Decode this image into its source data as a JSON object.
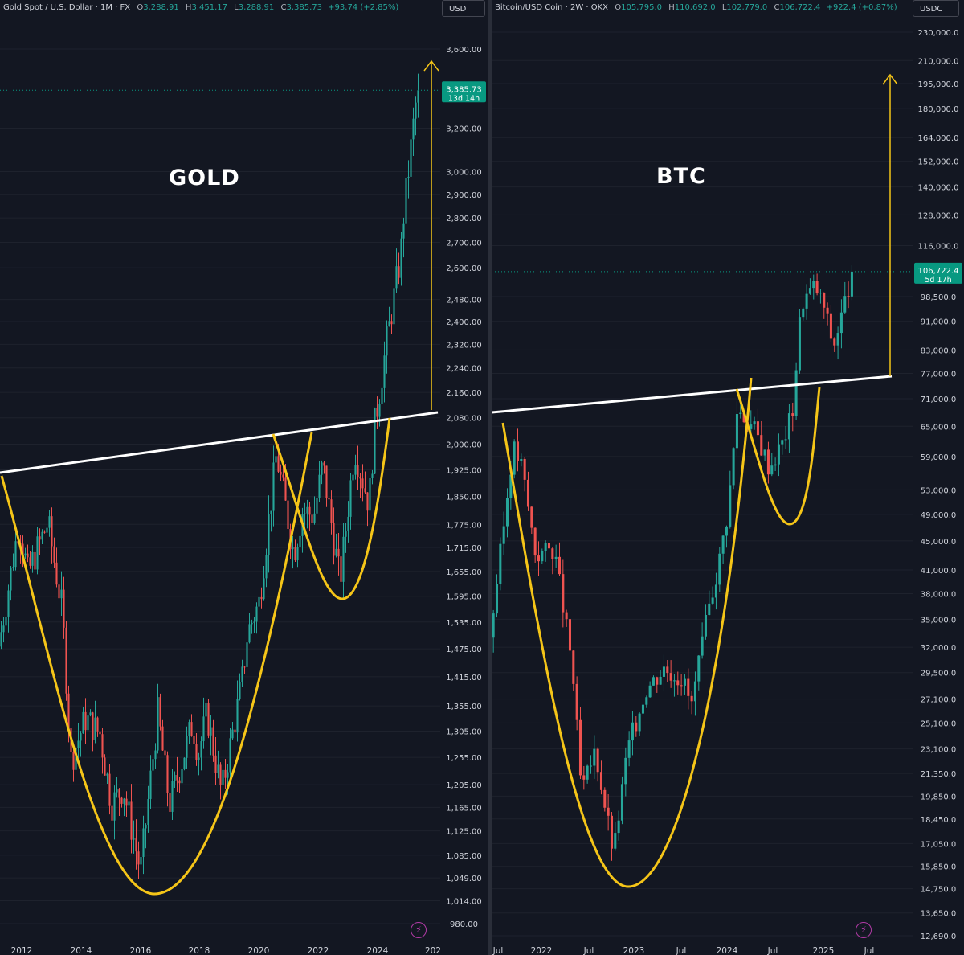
{
  "gold": {
    "legend": {
      "name": "Gold Spot / U.S. Dollar · 1M · FX",
      "o_label": "O",
      "o": "3,288.91",
      "h_label": "H",
      "h": "3,451.17",
      "l_label": "L",
      "l": "3,288.91",
      "c_label": "C",
      "c": "3,385.73",
      "change": "+93.74 (+2.85%)"
    },
    "currency": "USD",
    "label": "GOLD",
    "price_tag": {
      "price": "3,385.73",
      "countdown": "13d 14h"
    },
    "price_ticks": [
      "3,600.00",
      "3,200.00",
      "3,000.00",
      "2,900.00",
      "2,800.00",
      "2,700.00",
      "2,600.00",
      "2,480.00",
      "2,400.00",
      "2,320.00",
      "2,240.00",
      "2,160.00",
      "2,080.00",
      "2,000.00",
      "1,925.00",
      "1,850.00",
      "1,775.00",
      "1,715.00",
      "1,655.00",
      "1,595.00",
      "1,535.00",
      "1,475.00",
      "1,415.00",
      "1,355.00",
      "1,305.00",
      "1,255.00",
      "1,205.00",
      "1,165.00",
      "1,125.00",
      "1,085.00",
      "1,049.00",
      "1,014.00",
      "980.00"
    ],
    "time_ticks": [
      "2012",
      "2014",
      "2016",
      "2018",
      "2020",
      "2022",
      "2024",
      "202"
    ]
  },
  "btc": {
    "legend": {
      "name": "Bitcoin/USD Coin · 2W · OKX",
      "o_label": "O",
      "o": "105,795.0",
      "h_label": "H",
      "h": "110,692.0",
      "l_label": "L",
      "l": "102,779.0",
      "c_label": "C",
      "c": "106,722.4",
      "change": "+922.4 (+0.87%)"
    },
    "currency": "USDC",
    "label": "BTC",
    "price_tag": {
      "price": "106,722.4",
      "countdown": "5d 17h"
    },
    "price_ticks": [
      "230,000.0",
      "210,000.0",
      "195,000.0",
      "180,000.0",
      "164,000.0",
      "152,000.0",
      "140,000.0",
      "128,000.0",
      "116,000.0",
      "98,500.0",
      "91,000.0",
      "83,000.0",
      "77,000.0",
      "71,000.0",
      "65,000.0",
      "59,000.0",
      "53,000.0",
      "49,000.0",
      "45,000.0",
      "41,000.0",
      "38,000.0",
      "35,000.0",
      "32,000.0",
      "29,500.0",
      "27,100.0",
      "25,100.0",
      "23,100.0",
      "21,350.0",
      "19,850.0",
      "18,450.0",
      "17,050.0",
      "15,850.0",
      "14,750.0",
      "13,650.0",
      "12,690.0"
    ],
    "time_ticks": [
      "Jul",
      "2022",
      "Jul",
      "2023",
      "Jul",
      "2024",
      "Jul",
      "2025",
      "Jul"
    ]
  },
  "colors": {
    "background": "#131722",
    "up": "#26a69a",
    "down": "#ef5350",
    "pattern": "#f5c518",
    "neckline": "#ffffff",
    "target_arrow": "#f5c518",
    "price_tag": "#089981",
    "gridline": "#1e222d"
  },
  "icons": {
    "bolt": "lightning-bolt-icon"
  },
  "chart_data": [
    {
      "type": "candlestick",
      "title": "Gold Spot / U.S. Dollar · 1M · FX",
      "timeframe": "1M",
      "scale": "log",
      "ylim": [
        980,
        3600
      ],
      "x_range": [
        "2011",
        "2025"
      ],
      "last_price": 3385.73,
      "annotation": "GOLD",
      "price_path": [
        [
          2011.0,
          1480
        ],
        [
          2011.7,
          1780
        ],
        [
          2012.0,
          1650
        ],
        [
          2012.7,
          1780
        ],
        [
          2013.2,
          1560
        ],
        [
          2013.5,
          1250
        ],
        [
          2014.0,
          1330
        ],
        [
          2014.5,
          1300
        ],
        [
          2014.9,
          1170
        ],
        [
          2015.3,
          1200
        ],
        [
          2015.9,
          1060
        ],
        [
          2016.5,
          1340
        ],
        [
          2016.9,
          1170
        ],
        [
          2017.7,
          1320
        ],
        [
          2017.9,
          1260
        ],
        [
          2018.2,
          1340
        ],
        [
          2018.7,
          1190
        ],
        [
          2019.4,
          1400
        ],
        [
          2019.6,
          1510
        ],
        [
          2020.0,
          1580
        ],
        [
          2020.6,
          1970
        ],
        [
          2021.2,
          1700
        ],
        [
          2021.5,
          1810
        ],
        [
          2021.9,
          1800
        ],
        [
          2022.2,
          1940
        ],
        [
          2022.8,
          1630
        ],
        [
          2023.3,
          1990
        ],
        [
          2023.8,
          1830
        ],
        [
          2024.0,
          2060
        ],
        [
          2024.4,
          2320
        ],
        [
          2024.9,
          2650
        ],
        [
          2025.0,
          2810
        ],
        [
          2025.4,
          3300
        ],
        [
          2025.5,
          3385.73
        ]
      ],
      "overlays": {
        "neckline": "rising line",
        "pattern": "cup and handle",
        "target": "arrow up from neckline"
      }
    },
    {
      "type": "candlestick",
      "title": "Bitcoin/USD Coin · 2W · OKX",
      "timeframe": "2W",
      "scale": "log",
      "ylim": [
        12690,
        230000
      ],
      "x_range": [
        "Jul 2021",
        "Jul 2025"
      ],
      "last_price": 106722.4,
      "annotation": "BTC",
      "price_path": [
        [
          2021.5,
          33000
        ],
        [
          2021.65,
          47000
        ],
        [
          2021.75,
          61000
        ],
        [
          2021.85,
          57000
        ],
        [
          2022.0,
          43000
        ],
        [
          2022.2,
          44000
        ],
        [
          2022.4,
          30000
        ],
        [
          2022.5,
          20000
        ],
        [
          2022.65,
          23000
        ],
        [
          2022.85,
          16500
        ],
        [
          2023.0,
          23000
        ],
        [
          2023.2,
          28000
        ],
        [
          2023.4,
          30000
        ],
        [
          2023.6,
          29000
        ],
        [
          2023.7,
          26500
        ],
        [
          2023.9,
          37000
        ],
        [
          2024.0,
          42000
        ],
        [
          2024.1,
          50000
        ],
        [
          2024.2,
          69000
        ],
        [
          2024.4,
          64000
        ],
        [
          2024.55,
          57000
        ],
        [
          2024.7,
          62000
        ],
        [
          2024.8,
          68000
        ],
        [
          2024.9,
          97000
        ],
        [
          2025.05,
          102000
        ],
        [
          2025.15,
          95000
        ],
        [
          2025.25,
          84000
        ],
        [
          2025.35,
          94000
        ],
        [
          2025.45,
          106722.4
        ]
      ],
      "overlays": {
        "neckline": "rising line",
        "pattern": "cup and handle",
        "target": "arrow up from neckline"
      }
    }
  ]
}
